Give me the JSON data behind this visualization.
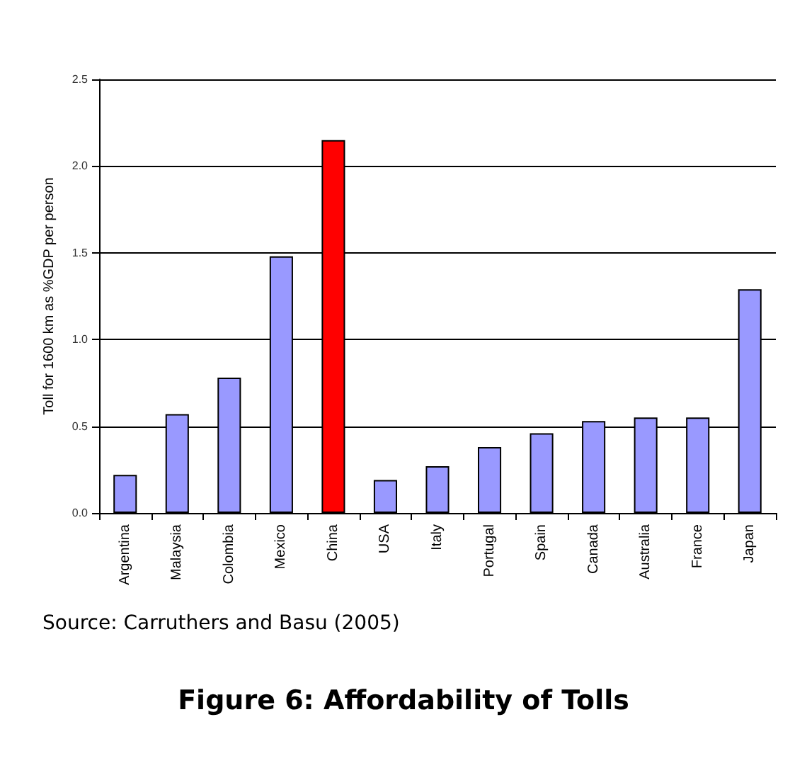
{
  "chart_data": {
    "type": "bar",
    "title": "Figure 6: Affordability of Tolls",
    "ylabel": "Toll for 1600 km as %GDP per person",
    "annotations": [
      "Source: Carruthers and Basu (2005)"
    ],
    "categories": [
      "Argentina",
      "Malaysia",
      "Colombia",
      "Mexico",
      "China",
      "USA",
      "Italy",
      "Portugal",
      "Spain",
      "Canada",
      "Australia",
      "France",
      "Japan"
    ],
    "values": [
      0.22,
      0.57,
      0.78,
      1.48,
      2.15,
      0.19,
      0.27,
      0.38,
      0.46,
      0.53,
      0.55,
      0.55,
      1.29
    ],
    "colors": [
      "#9999ff",
      "#9999ff",
      "#9999ff",
      "#9999ff",
      "#ff0000",
      "#9999ff",
      "#9999ff",
      "#9999ff",
      "#9999ff",
      "#9999ff",
      "#9999ff",
      "#9999ff",
      "#9999ff"
    ],
    "ylim": [
      0,
      2.5
    ],
    "yticks": [
      {
        "value": 0,
        "label": "0.0"
      },
      {
        "value": 0.5,
        "label": "0.5"
      },
      {
        "value": 1,
        "label": "1.0"
      },
      {
        "value": 1.5,
        "label": "1.5"
      },
      {
        "value": 2,
        "label": "2.0"
      },
      {
        "value": 2.5,
        "label": "2.5"
      }
    ],
    "grid": "y"
  }
}
